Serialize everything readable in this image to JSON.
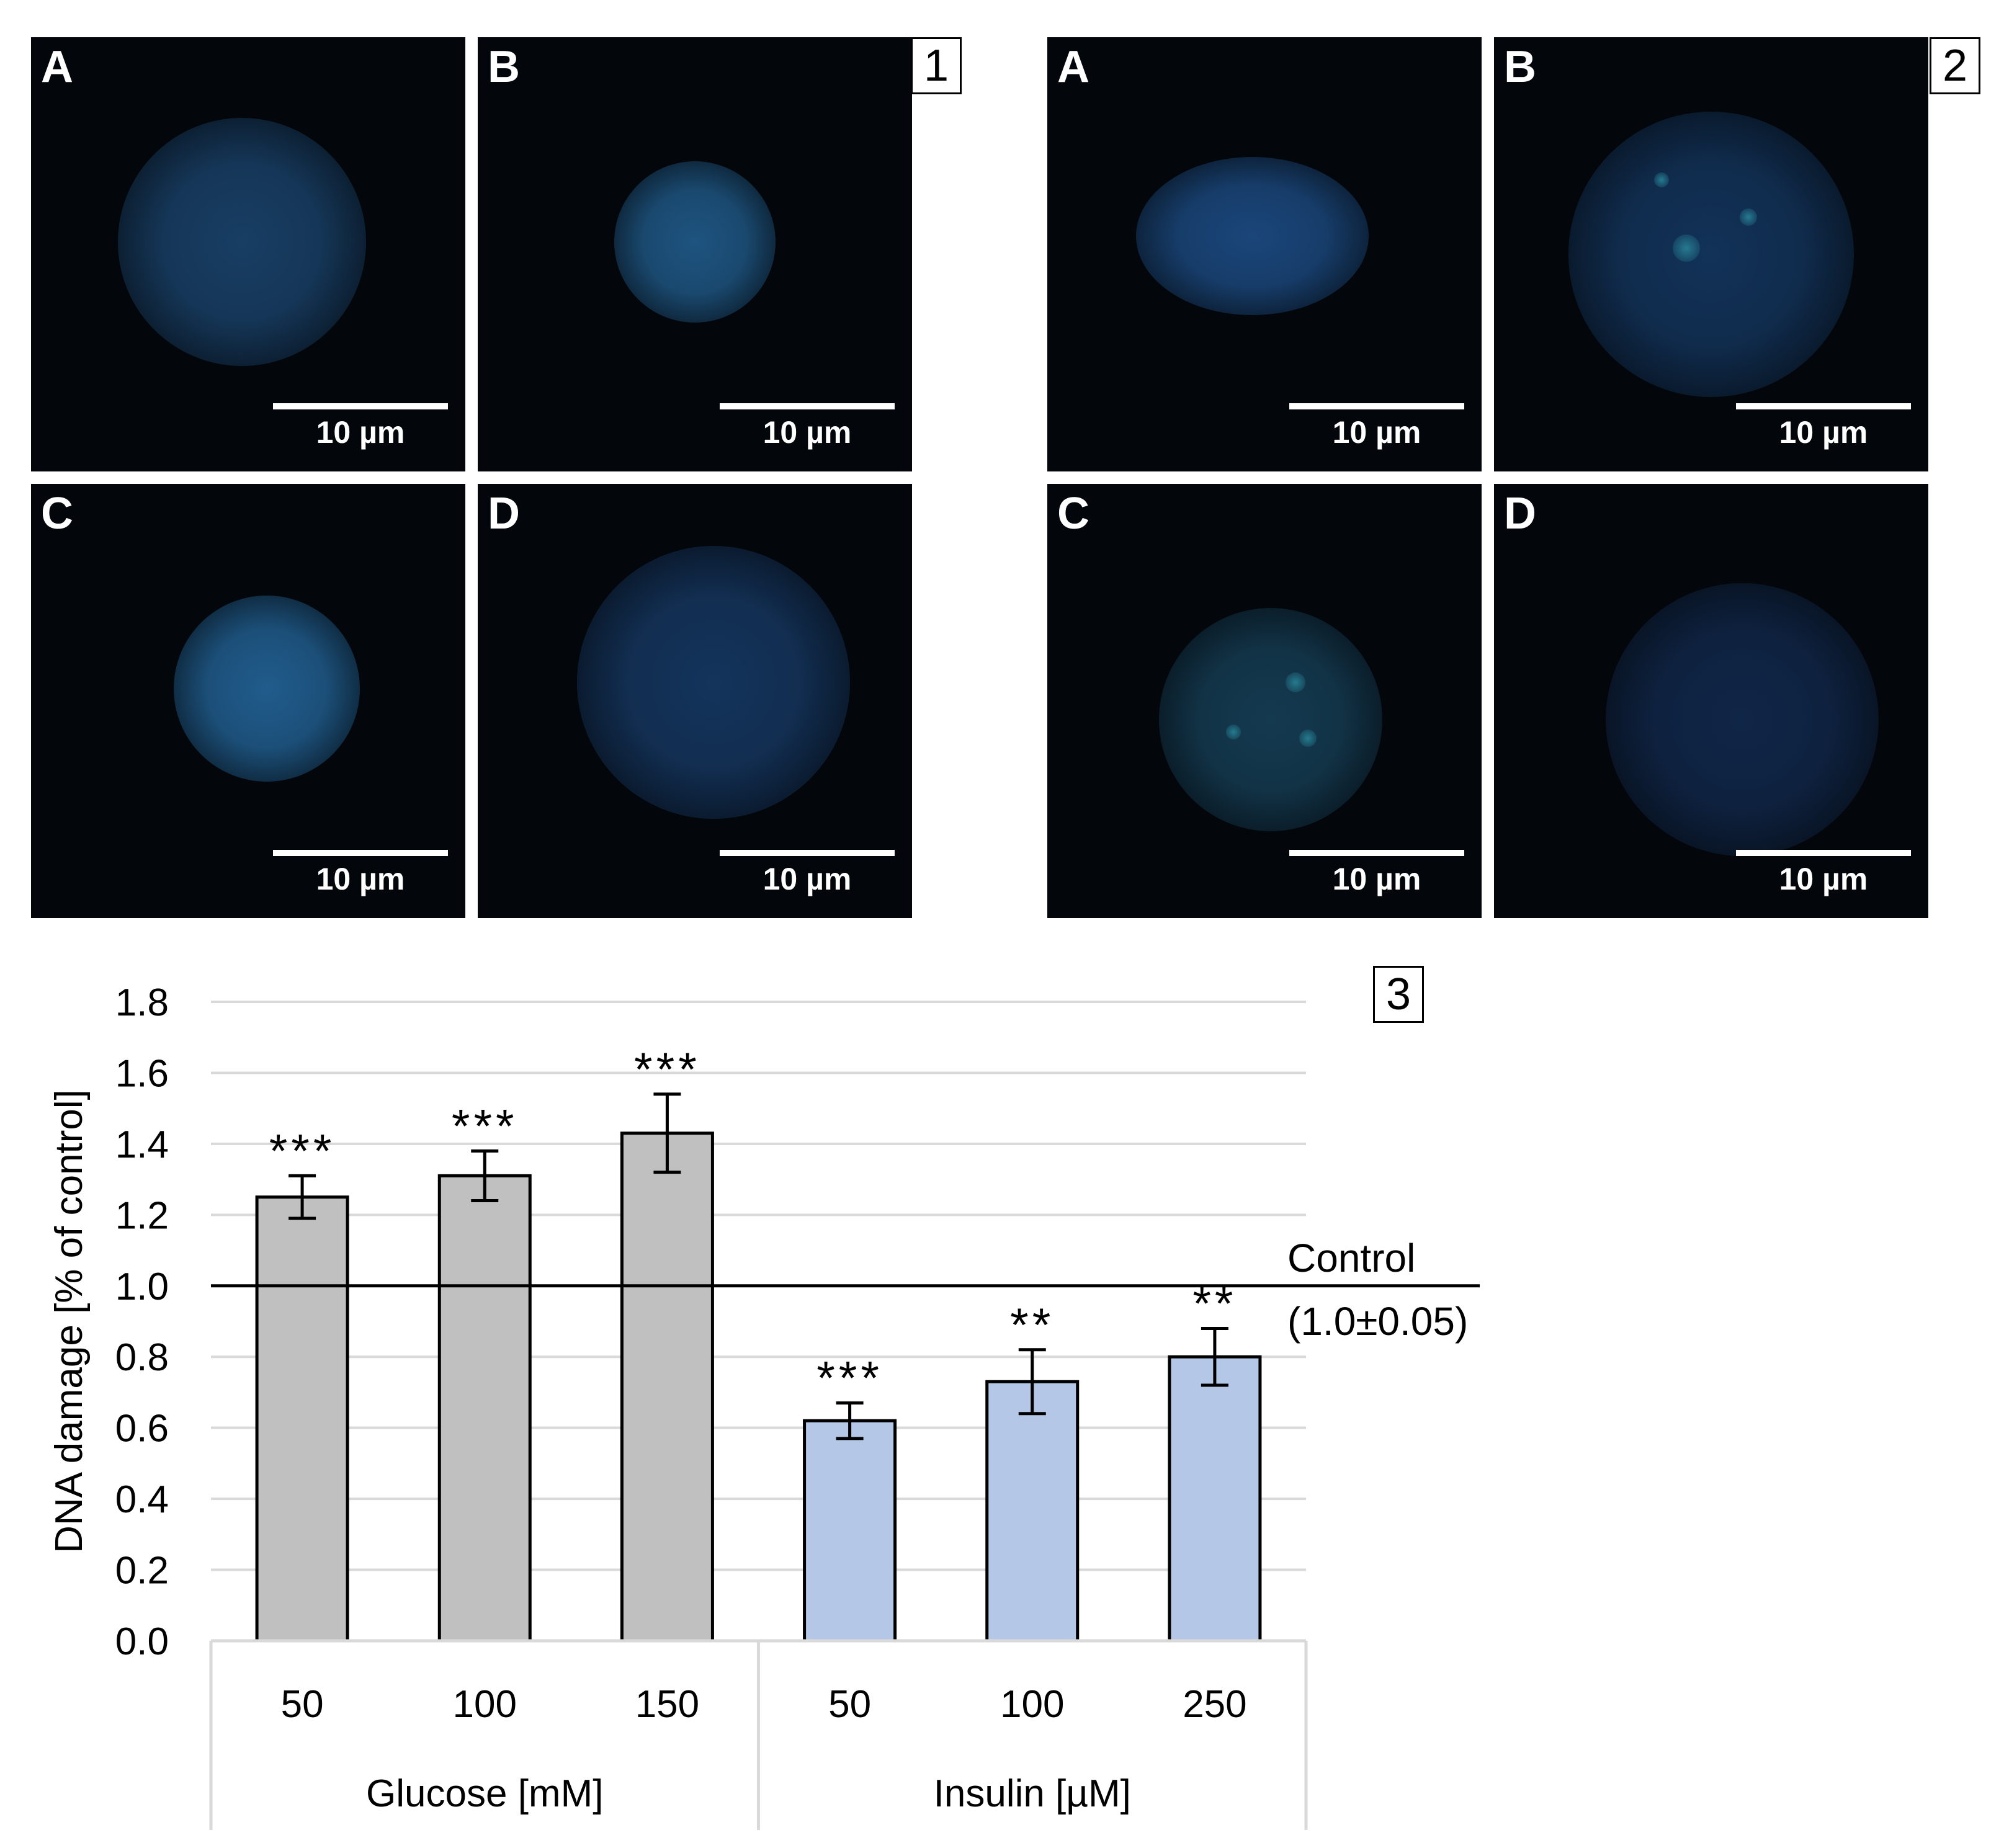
{
  "figure_panels": [
    {
      "number": "1",
      "images": [
        {
          "letter": "A",
          "scale_label": "10 µm"
        },
        {
          "letter": "B",
          "scale_label": "10 µm"
        },
        {
          "letter": "C",
          "scale_label": "10 µm"
        },
        {
          "letter": "D",
          "scale_label": "10 µm"
        }
      ]
    },
    {
      "number": "2",
      "images": [
        {
          "letter": "A",
          "scale_label": "10 µm"
        },
        {
          "letter": "B",
          "scale_label": "10 µm"
        },
        {
          "letter": "C",
          "scale_label": "10 µm"
        },
        {
          "letter": "D",
          "scale_label": "10 µm"
        }
      ]
    }
  ],
  "chart_number": "3",
  "chart_data": {
    "type": "bar",
    "ylabel": "DNA damage [% of control]",
    "ylim": [
      0,
      1.8
    ],
    "yticks": [
      "0.0",
      "0.2",
      "0.4",
      "0.6",
      "0.8",
      "1.0",
      "1.2",
      "1.4",
      "1.6",
      "1.8"
    ],
    "grid": true,
    "groups": [
      {
        "name": "Glucose [mM]",
        "color": "#c0c0c0",
        "categories": [
          "50",
          "100",
          "150"
        ],
        "values": [
          1.25,
          1.31,
          1.43
        ],
        "errors": [
          0.06,
          0.07,
          0.11
        ],
        "significance": [
          "***",
          "***",
          "***"
        ]
      },
      {
        "name": "Insulin [µM]",
        "color": "#b4c7e7",
        "categories": [
          "50",
          "100",
          "250"
        ],
        "values": [
          0.62,
          0.73,
          0.8
        ],
        "errors": [
          0.05,
          0.09,
          0.08
        ],
        "significance": [
          "***",
          "**",
          "**"
        ]
      }
    ],
    "reference_line": {
      "value": 1.0,
      "label": "Control",
      "sublabel": "(1.0±0.05)"
    }
  }
}
